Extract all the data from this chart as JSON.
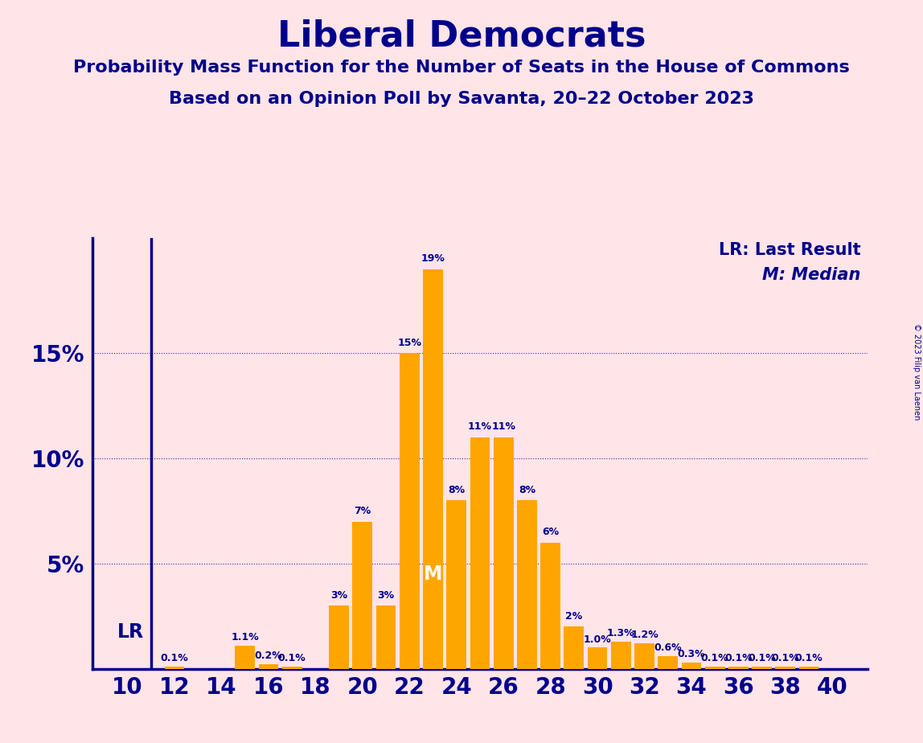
{
  "title": "Liberal Democrats",
  "subtitle1": "Probability Mass Function for the Number of Seats in the House of Commons",
  "subtitle2": "Based on an Opinion Poll by Savanta, 20–22 October 2023",
  "copyright": "© 2023 Filip van Laenen",
  "background_color": "#FFE4E8",
  "bar_color": "#FFA500",
  "title_color": "#00008B",
  "axis_color": "#00008B",
  "grid_color": "#00008B",
  "seats": [
    10,
    11,
    12,
    13,
    14,
    15,
    16,
    17,
    18,
    19,
    20,
    21,
    22,
    23,
    24,
    25,
    26,
    27,
    28,
    29,
    30,
    31,
    32,
    33,
    34,
    35,
    36,
    37,
    38,
    39,
    40
  ],
  "values": [
    0.0,
    0.0,
    0.1,
    0.0,
    0.0,
    1.1,
    0.2,
    0.1,
    0.0,
    3.0,
    7.0,
    3.0,
    15.0,
    19.0,
    8.0,
    11.0,
    11.0,
    8.0,
    6.0,
    2.0,
    1.0,
    1.3,
    1.2,
    0.6,
    0.3,
    0.1,
    0.1,
    0.1,
    0.1,
    0.1,
    0.0
  ],
  "bar_labels": [
    "0%",
    "0%",
    "0.1%",
    "0%",
    "0%",
    "1.1%",
    "0.2%",
    "0.1%",
    "0%",
    "3%",
    "7%",
    "3%",
    "15%",
    "19%",
    "8%",
    "11%",
    "11%",
    "8%",
    "6%",
    "2%",
    "1.0%",
    "1.3%",
    "1.2%",
    "0.6%",
    "0.3%",
    "0.1%",
    "0.1%",
    "0.1%",
    "0.1%",
    "0.1%",
    "0%"
  ],
  "lr_seat": 11,
  "median_seat": 23,
  "ylim": [
    0,
    20.5
  ],
  "yticks": [
    5,
    10,
    15
  ],
  "ytick_labels": [
    "5%",
    "10%",
    "15%"
  ],
  "legend_lr": "LR: Last Result",
  "legend_m": "M: Median",
  "lr_label": "LR",
  "m_label": "M",
  "title_fontsize": 32,
  "subtitle_fontsize": 16,
  "tick_fontsize": 20,
  "bar_label_fontsize": 9,
  "legend_fontsize": 15
}
